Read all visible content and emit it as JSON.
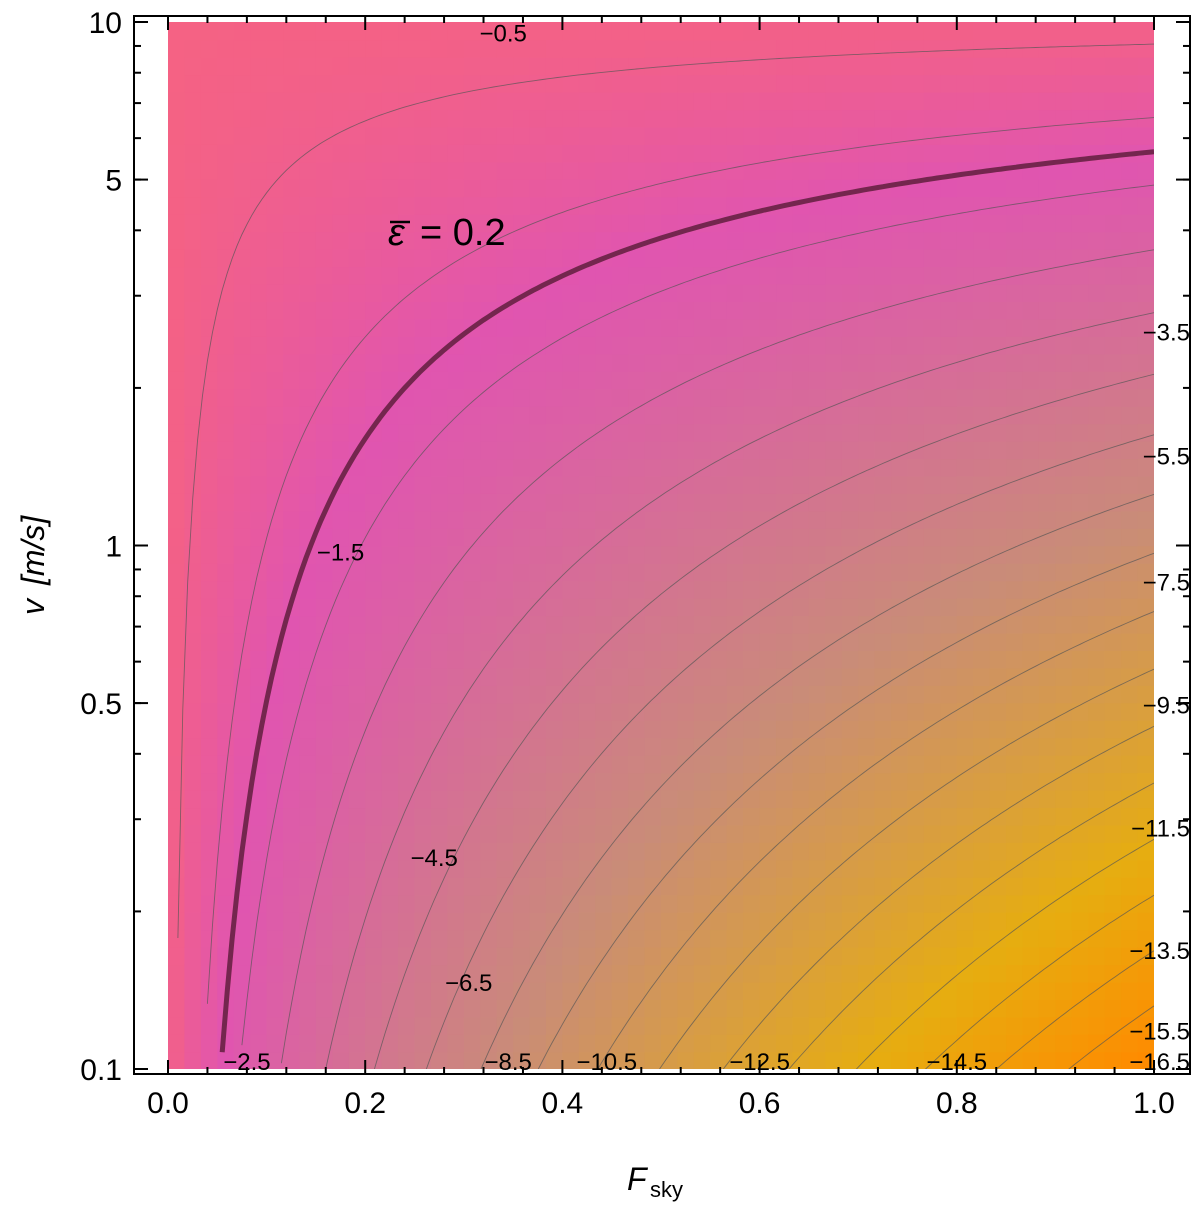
{
  "chart_data": {
    "type": "contour",
    "title": "",
    "xlabel": "F",
    "xlabel_sub": "sky",
    "ylabel_var": "v",
    "ylabel_unit": "[m/s]",
    "xlim": [
      0.0,
      1.0
    ],
    "ylim": [
      0.1,
      10
    ],
    "yscale": "log",
    "x_ticks": [
      {
        "value": 0.0,
        "label": "0.0"
      },
      {
        "value": 0.2,
        "label": "0.2"
      },
      {
        "value": 0.4,
        "label": "0.4"
      },
      {
        "value": 0.6,
        "label": "0.6"
      },
      {
        "value": 0.8,
        "label": "0.8"
      },
      {
        "value": 1.0,
        "label": "1.0"
      }
    ],
    "y_ticks": [
      {
        "value": 0.1,
        "label": "0.1"
      },
      {
        "value": 0.5,
        "label": "0.5"
      },
      {
        "value": 1,
        "label": "1"
      },
      {
        "value": 5,
        "label": "5"
      },
      {
        "value": 10,
        "label": "10"
      }
    ],
    "contour_levels": [
      -0.5,
      -1.5,
      -2.5,
      -3.5,
      -4.5,
      -5.5,
      -6.5,
      -7.5,
      -8.5,
      -9.5,
      -10.5,
      -11.5,
      -12.5,
      -13.5,
      -14.5,
      -15.5,
      -16.5
    ],
    "contour_labels": [
      {
        "text": "−0.5",
        "x": 0.34,
        "y": 9.5
      },
      {
        "text": "−1.5",
        "x": 0.175,
        "y": 0.97
      },
      {
        "text": "−2.5",
        "x": 0.08,
        "y": 0.1
      },
      {
        "text": "−3.5",
        "x": 0.99,
        "y": 2.55
      },
      {
        "text": "−4.5",
        "x": 0.27,
        "y": 0.253
      },
      {
        "text": "−5.5",
        "x": 0.99,
        "y": 1.48
      },
      {
        "text": "−6.5",
        "x": 0.305,
        "y": 0.146
      },
      {
        "text": "−7.5",
        "x": 0.99,
        "y": 0.85
      },
      {
        "text": "−8.5",
        "x": 0.345,
        "y": 0.1
      },
      {
        "text": "−9.5",
        "x": 0.99,
        "y": 0.495
      },
      {
        "text": "−10.5",
        "x": 0.445,
        "y": 0.1
      },
      {
        "text": "−11.5",
        "x": 0.99,
        "y": 0.288
      },
      {
        "text": "−12.5",
        "x": 0.6,
        "y": 0.1
      },
      {
        "text": "−13.5",
        "x": 0.99,
        "y": 0.168
      },
      {
        "text": "−14.5",
        "x": 0.8,
        "y": 0.1
      },
      {
        "text": "−15.5",
        "x": 0.99,
        "y": 0.118
      },
      {
        "text": "−16.5",
        "x": 0.99,
        "y": 0.1
      }
    ],
    "highlight_contour": {
      "label_var": "ε",
      "label_value": "= 0.2",
      "level": -2.0
    },
    "colors": {
      "high": "#f56283",
      "mid": "#e055b0",
      "low_mid": "#c98c78",
      "low": "#e6ad10",
      "lowest": "#ff8a00",
      "highlight_line": "#74264e",
      "contour_line": "#555555"
    }
  }
}
